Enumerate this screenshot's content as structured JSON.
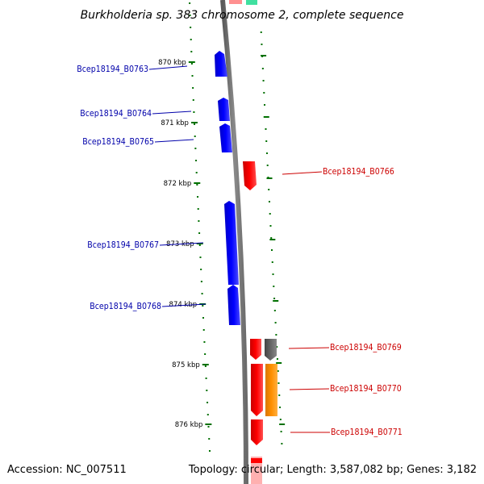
{
  "title": "Burkholderia sp. 383 chromosome 2, complete sequence",
  "accession": "Accession: NC_007511",
  "summary": "Topology: circular; Length: 3,587,082 bp; Genes: 3,182",
  "colors": {
    "forward_strand": "#0000ff",
    "reverse_strand": "#ff0000",
    "other_feature_orange": "#ff8c00",
    "other_feature_gray": "#666666",
    "backbone": "#808080",
    "tick": "#007000"
  },
  "kbp_ticks": [
    "870 kbp",
    "871 kbp",
    "872 kbp",
    "873 kbp",
    "874 kbp",
    "875 kbp",
    "876 kbp"
  ],
  "labels_left": [
    {
      "text": "Bcep18194_B0763",
      "color": "#0000aa"
    },
    {
      "text": "Bcep18194_B0764",
      "color": "#0000aa"
    },
    {
      "text": "Bcep18194_B0765",
      "color": "#0000aa"
    },
    {
      "text": "Bcep18194_B0767",
      "color": "#0000aa"
    },
    {
      "text": "Bcep18194_B0768",
      "color": "#0000aa"
    }
  ],
  "labels_right": [
    {
      "text": "Bcep18194_B0766",
      "color": "#cc0000"
    },
    {
      "text": "Bcep18194_B0769",
      "color": "#cc0000"
    },
    {
      "text": "Bcep18194_B0770",
      "color": "#cc0000"
    },
    {
      "text": "Bcep18194_B0771",
      "color": "#cc0000"
    }
  ]
}
